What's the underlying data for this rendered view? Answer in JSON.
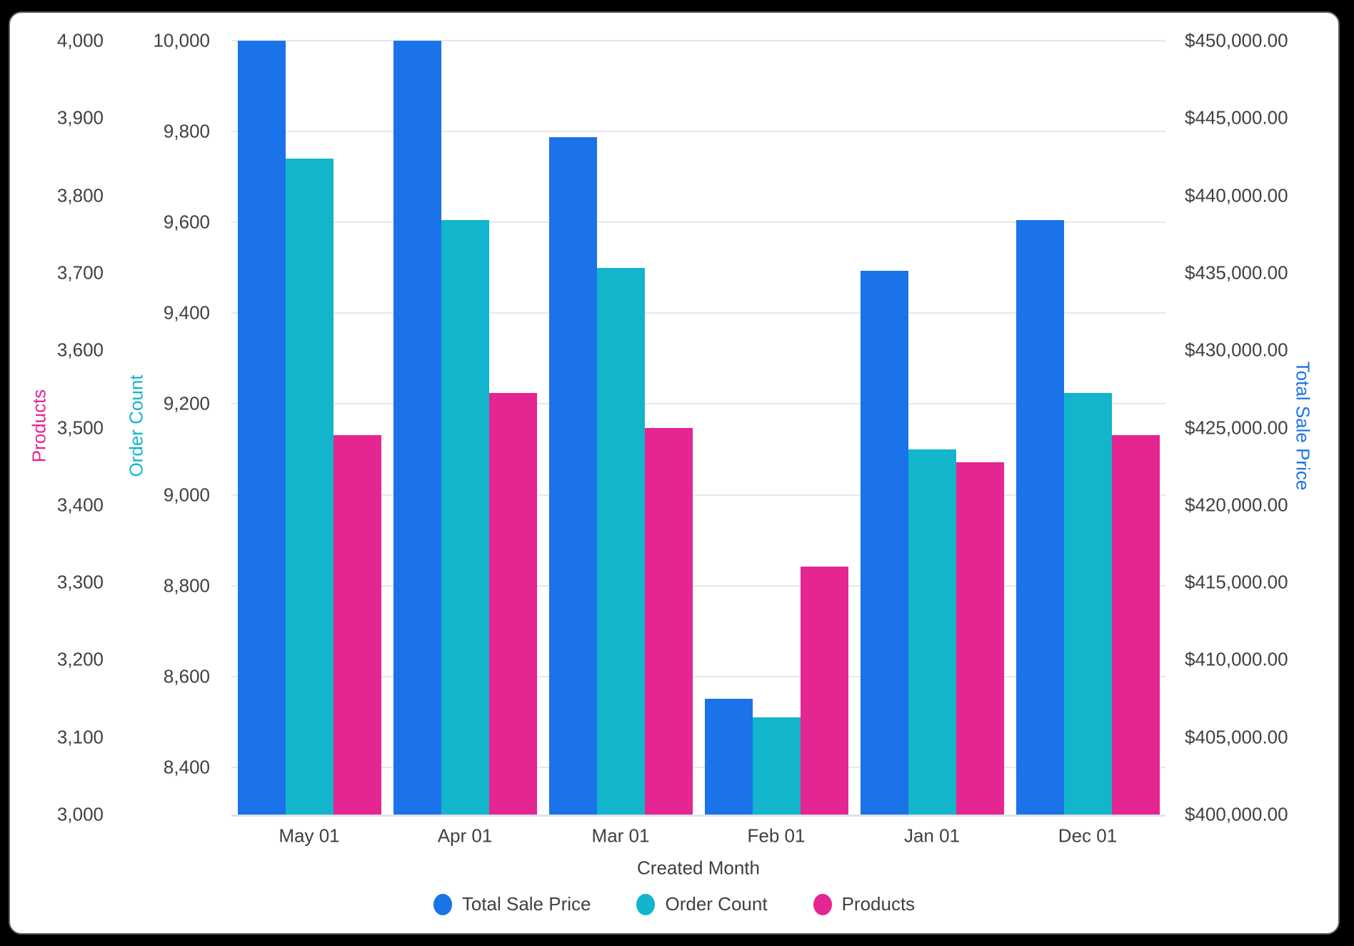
{
  "chart_data": {
    "type": "bar",
    "title": "",
    "xlabel": "Created Month",
    "categories": [
      "May 01",
      "Apr 01",
      "Mar 01",
      "Feb 01",
      "Jan 01",
      "Dec 01"
    ],
    "series": [
      {
        "name": "Total Sale Price",
        "axis": "price",
        "color": "#1A73E8",
        "values": [
          450000,
          450000,
          443750,
          407500,
          435150,
          438400
        ]
      },
      {
        "name": "Order Count",
        "axis": "order",
        "color": "#12B5CB",
        "values": [
          9740,
          9605,
          9500,
          8510,
          9100,
          9225
        ]
      },
      {
        "name": "Products",
        "axis": "products",
        "color": "#E52592",
        "values": [
          3490,
          3545,
          3500,
          3320,
          3455,
          3490
        ]
      }
    ],
    "axes": {
      "products": {
        "title": "Products",
        "color": "#E52592",
        "min": 3000,
        "max": 4000,
        "tick_values": [
          4000,
          3900,
          3800,
          3700,
          3600,
          3500,
          3400,
          3300,
          3200,
          3100,
          3000
        ],
        "tick_labels": [
          "4,000",
          "3,900",
          "3,800",
          "3,700",
          "3,600",
          "3,500",
          "3,400",
          "3,300",
          "3,200",
          "3,100",
          "3,000"
        ]
      },
      "order": {
        "title": "Order Count",
        "color": "#12B5CB",
        "min": 8296,
        "max": 10000,
        "tick_values": [
          10000,
          9800,
          9600,
          9400,
          9200,
          9000,
          8800,
          8600,
          8400
        ],
        "tick_labels": [
          "10,000",
          "9,800",
          "9,600",
          "9,400",
          "9,200",
          "9,000",
          "8,800",
          "8,600",
          "8,400"
        ]
      },
      "price": {
        "title": "Total Sale Price",
        "color": "#1A73E8",
        "min": 400000,
        "max": 450000,
        "tick_values": [
          450000,
          445000,
          440000,
          435000,
          430000,
          425000,
          420000,
          415000,
          410000,
          405000,
          400000
        ],
        "tick_labels": [
          "$450,000.00",
          "$445,000.00",
          "$440,000.00",
          "$435,000.00",
          "$430,000.00",
          "$425,000.00",
          "$420,000.00",
          "$415,000.00",
          "$410,000.00",
          "$405,000.00",
          "$400,000.00"
        ]
      }
    },
    "legend": [
      "Total Sale Price",
      "Order Count",
      "Products"
    ],
    "legend_position": "bottom",
    "grid": "horizontal"
  }
}
